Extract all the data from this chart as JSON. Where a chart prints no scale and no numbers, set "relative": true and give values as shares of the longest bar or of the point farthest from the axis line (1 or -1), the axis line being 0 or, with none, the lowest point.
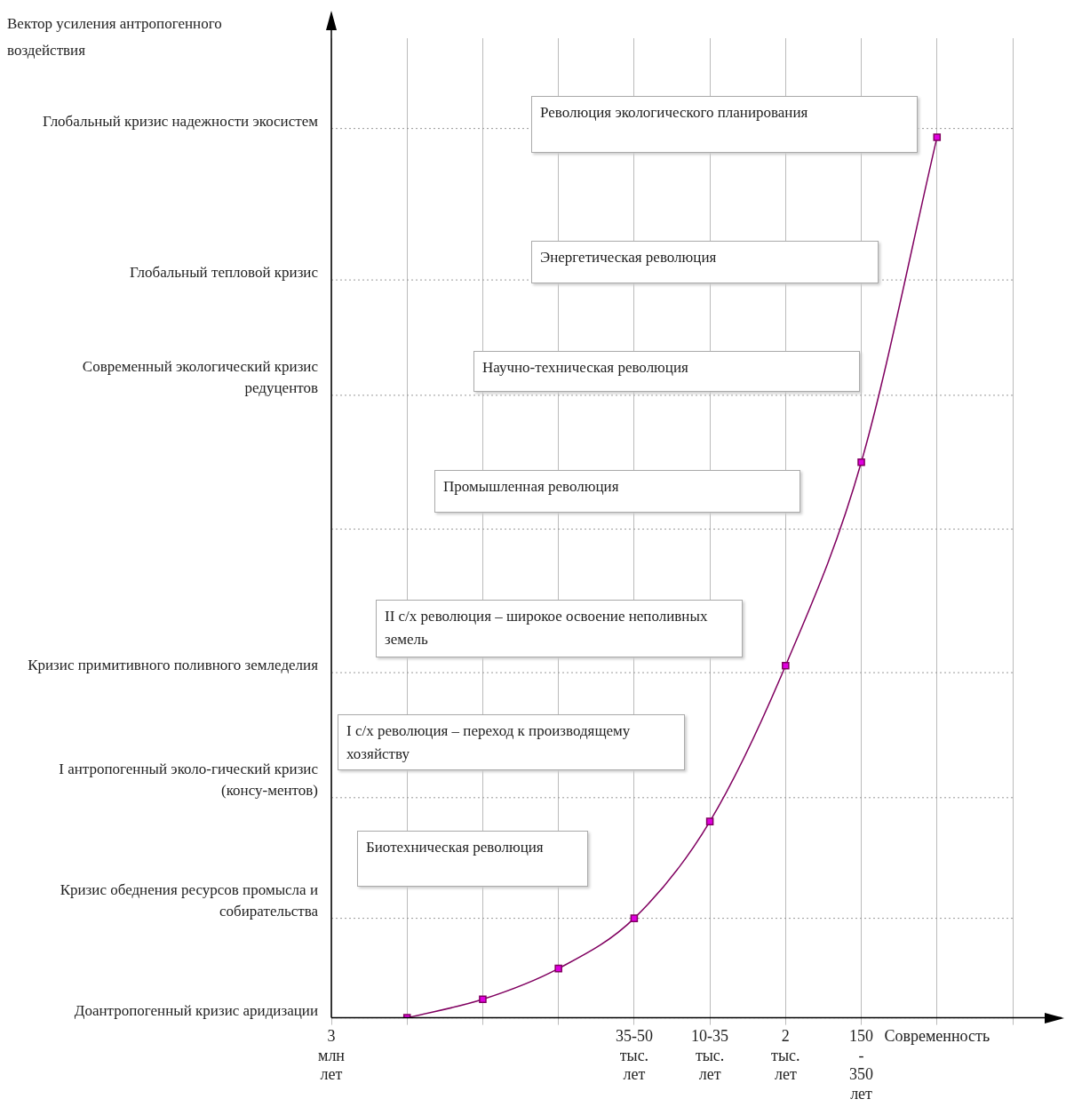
{
  "chart_data": {
    "type": "line",
    "relative": true,
    "categories": [
      "3 млн лет",
      null,
      null,
      null,
      "35-50 тыс. лет",
      "10-35 тыс. лет",
      "2 тыс. лет",
      "150 - 350 лет",
      "Современность",
      null
    ],
    "series": [
      {
        "color": "#800060",
        "values": [
          null,
          0,
          0.021,
          0.056,
          0.113,
          0.223,
          0.4,
          0.631,
          1,
          null
        ]
      }
    ],
    "marker": "square",
    "grid": "x",
    "legend": false,
    "ref_lines": [
      {
        "axis": "y",
        "value": 1.01,
        "label": "Глобальный кризис надежности экосистем",
        "color": "#999999",
        "line_style": "dotted"
      },
      {
        "axis": "y",
        "value": 0.838,
        "label": "Глобальный тепловой кризис",
        "color": "#999999",
        "line_style": "dotted"
      },
      {
        "axis": "y",
        "value": 0.707,
        "label": "Современный экологический кризис редуцентов",
        "color": "#999999",
        "line_style": "dotted"
      },
      {
        "axis": "y",
        "value": 0.555,
        "color": "#999999",
        "line_style": "dotted"
      },
      {
        "axis": "y",
        "value": 0.392,
        "label": "Кризис примитивного поливного земледелия",
        "color": "#999999",
        "line_style": "dotted"
      },
      {
        "axis": "y",
        "value": 0.25,
        "label": "I антропогенный эколо-гический кризис (консу-ментов)",
        "color": "#999999",
        "line_style": "dotted"
      },
      {
        "axis": "y",
        "value": 0.113,
        "label": "Кризис обеднения ресурсов промысла и собирательства",
        "color": "#999999",
        "line_style": "dotted"
      },
      {
        "axis": "y",
        "value": 0,
        "label": "Доантропогенный кризис аридизации",
        "color": "#999999",
        "line_style": "dotted"
      }
    ],
    "annotations": [
      "Вектор усиления антропогенного воздействия",
      "Революция экологического планирования",
      "Энергетическая революция",
      "Научно-техническая революция",
      "Промышленная революция",
      "II с/х революция – широкое освоение неполивных земель",
      "I с/х революция – переход к производящему хозяйству",
      "Биотехническая революция"
    ]
  }
}
